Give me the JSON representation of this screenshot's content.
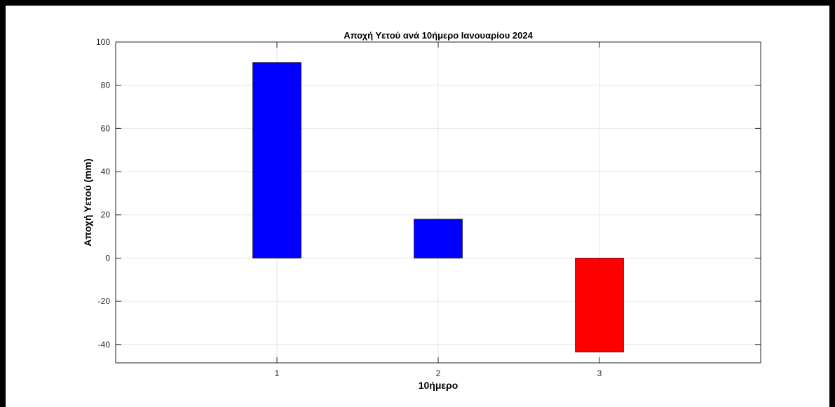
{
  "chart_data": {
    "type": "bar",
    "title": "Αποχή Υετού ανά 10ήμερο Ιανουαρίου 2024",
    "xlabel": "10ήμερο",
    "ylabel": "Αποχή Υετού (mm)",
    "categories": [
      "1",
      "2",
      "3"
    ],
    "x": [
      1,
      2,
      3
    ],
    "values": [
      90.5,
      18,
      -43.5
    ],
    "bar_colors": [
      "#0000ff",
      "#0000ff",
      "#ff0000"
    ],
    "positive_color": "#0000ff",
    "negative_color": "#ff0000",
    "xlim": [
      0,
      4
    ],
    "ylim": [
      -48.5,
      100
    ],
    "yticks": [
      -40,
      -20,
      0,
      20,
      40,
      60,
      80,
      100
    ],
    "ytick_labels": [
      "-40",
      "-20",
      "0",
      "20",
      "40",
      "60",
      "80",
      "100"
    ],
    "grid": true,
    "legend": "none"
  }
}
